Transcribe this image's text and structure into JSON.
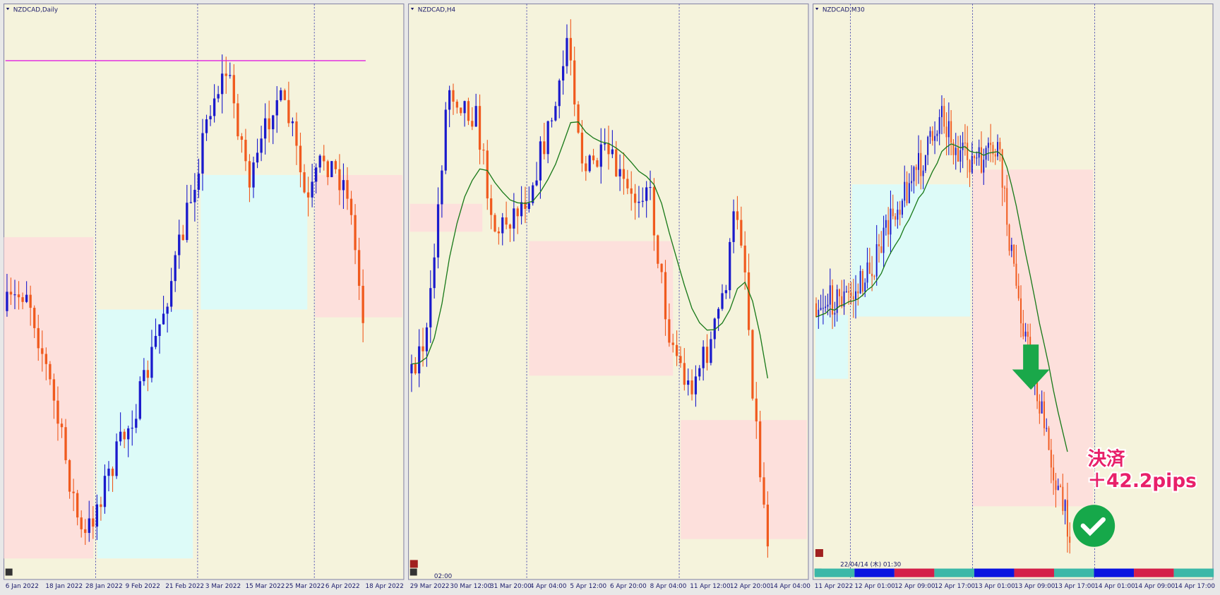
{
  "panels": [
    {
      "title": "NZDCAD,Daily",
      "x_labels": [
        "6 Jan 2022",
        "18 Jan 2022",
        "28 Jan 2022",
        "9 Feb 2022",
        "21 Feb 2022",
        "3 Mar 2022",
        "15 Mar 2022",
        "25 Mar 2022",
        "6 Apr 2022",
        "18 Apr 2022"
      ]
    },
    {
      "title": "NZDCAD,H4",
      "time_label": "02:00",
      "x_labels": [
        "29 Mar 2022",
        "30 Mar 12:00",
        "31 Mar 20:00",
        "4 Apr 04:00",
        "5 Apr 12:00",
        "6 Apr 20:00",
        "8 Apr 04:00",
        "11 Apr 12:00",
        "12 Apr 20:00",
        "14 Apr 04:00"
      ]
    },
    {
      "title": "NZDCAD,M30",
      "timestamp": "22/04/14 (木) 01:30",
      "x_labels": [
        "11 Apr 2022",
        "12 Apr 01:00",
        "12 Apr 09:00",
        "12 Apr 17:00",
        "13 Apr 01:00",
        "13 Apr 09:00",
        "13 Apr 17:00",
        "14 Apr 01:00",
        "14 Apr 09:00",
        "14 Apr 17:00"
      ]
    }
  ],
  "annotation": {
    "line1": "決済",
    "line2": "＋42.2pips"
  }
}
